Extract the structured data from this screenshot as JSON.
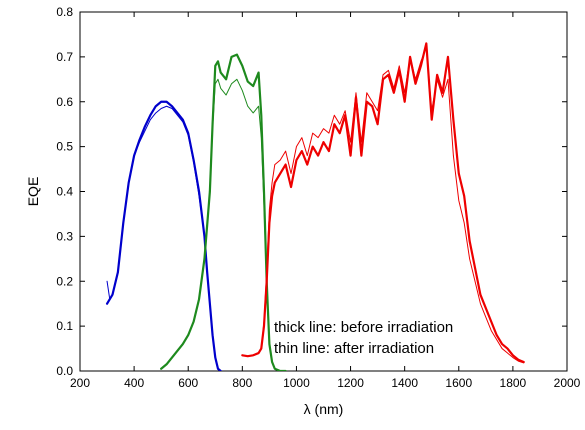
{
  "chart_data": {
    "type": "line",
    "title": "",
    "xlabel": "λ (nm)",
    "ylabel": "EQE",
    "xlim": [
      200,
      2000
    ],
    "ylim": [
      0.0,
      0.8
    ],
    "x_ticks": [
      "200",
      "400",
      "600",
      "800",
      "1000",
      "1200",
      "1400",
      "1600",
      "1800",
      "2000"
    ],
    "y_ticks": [
      "0.0",
      "0.1",
      "0.2",
      "0.3",
      "0.4",
      "0.5",
      "0.6",
      "0.7",
      "0.8"
    ],
    "grid": false,
    "legend": "none",
    "annotations": [
      "thick line: before irradiation",
      "thin line: after irradiation"
    ],
    "series": [
      {
        "color": "#0000cc",
        "width": 2.2,
        "x": [
          300,
          320,
          340,
          360,
          380,
          400,
          420,
          440,
          460,
          480,
          500,
          520,
          540,
          560,
          580,
          600,
          620,
          640,
          660,
          670,
          680,
          690,
          700,
          710,
          720
        ],
        "y": [
          0.15,
          0.17,
          0.22,
          0.33,
          0.42,
          0.48,
          0.515,
          0.545,
          0.57,
          0.59,
          0.6,
          0.6,
          0.59,
          0.575,
          0.56,
          0.53,
          0.47,
          0.4,
          0.3,
          0.22,
          0.15,
          0.08,
          0.03,
          0.005,
          0.0
        ]
      },
      {
        "color": "#0000cc",
        "width": 1.0,
        "x": [
          300,
          310,
          320,
          340,
          360,
          380,
          400,
          420,
          440,
          460,
          480,
          500,
          520,
          540,
          560,
          580,
          600,
          620,
          640,
          660,
          670,
          680,
          690,
          700,
          710,
          720
        ],
        "y": [
          0.2,
          0.16,
          0.17,
          0.22,
          0.33,
          0.42,
          0.48,
          0.51,
          0.535,
          0.56,
          0.575,
          0.585,
          0.59,
          0.585,
          0.57,
          0.555,
          0.525,
          0.465,
          0.39,
          0.3,
          0.22,
          0.15,
          0.08,
          0.03,
          0.005,
          0.0
        ]
      },
      {
        "color": "#1e8a1e",
        "width": 2.2,
        "x": [
          500,
          520,
          540,
          560,
          580,
          600,
          620,
          640,
          660,
          680,
          690,
          700,
          710,
          720,
          740,
          760,
          780,
          800,
          820,
          840,
          860,
          870,
          880,
          890,
          900,
          910,
          920,
          940,
          960
        ],
        "y": [
          0.005,
          0.015,
          0.03,
          0.045,
          0.06,
          0.08,
          0.11,
          0.16,
          0.25,
          0.4,
          0.55,
          0.68,
          0.69,
          0.665,
          0.65,
          0.7,
          0.705,
          0.68,
          0.645,
          0.635,
          0.665,
          0.57,
          0.4,
          0.2,
          0.06,
          0.02,
          0.005,
          0.0,
          0.0
        ]
      },
      {
        "color": "#1e8a1e",
        "width": 1.0,
        "x": [
          500,
          520,
          540,
          560,
          580,
          600,
          620,
          640,
          660,
          680,
          690,
          700,
          710,
          720,
          740,
          760,
          780,
          800,
          820,
          840,
          860,
          870,
          880,
          890,
          900,
          910,
          920,
          940,
          960
        ],
        "y": [
          0.005,
          0.015,
          0.03,
          0.045,
          0.06,
          0.08,
          0.11,
          0.16,
          0.25,
          0.4,
          0.54,
          0.64,
          0.65,
          0.63,
          0.615,
          0.64,
          0.65,
          0.625,
          0.59,
          0.575,
          0.59,
          0.52,
          0.37,
          0.19,
          0.06,
          0.02,
          0.005,
          0.0,
          0.0
        ]
      },
      {
        "color": "#ee0000",
        "width": 2.2,
        "x": [
          800,
          820,
          840,
          860,
          870,
          880,
          890,
          900,
          910,
          920,
          940,
          960,
          980,
          1000,
          1020,
          1040,
          1060,
          1080,
          1100,
          1120,
          1140,
          1160,
          1180,
          1200,
          1220,
          1240,
          1260,
          1280,
          1300,
          1320,
          1340,
          1360,
          1380,
          1400,
          1420,
          1440,
          1460,
          1480,
          1500,
          1520,
          1540,
          1560,
          1580,
          1600,
          1620,
          1640,
          1660,
          1680,
          1700,
          1720,
          1740,
          1760,
          1780,
          1800,
          1820,
          1840
        ],
        "y": [
          0.035,
          0.033,
          0.035,
          0.04,
          0.05,
          0.1,
          0.2,
          0.33,
          0.39,
          0.42,
          0.44,
          0.46,
          0.41,
          0.47,
          0.49,
          0.46,
          0.5,
          0.48,
          0.51,
          0.49,
          0.55,
          0.53,
          0.57,
          0.48,
          0.61,
          0.48,
          0.6,
          0.59,
          0.55,
          0.65,
          0.66,
          0.62,
          0.67,
          0.6,
          0.7,
          0.64,
          0.68,
          0.73,
          0.56,
          0.66,
          0.62,
          0.7,
          0.56,
          0.44,
          0.39,
          0.29,
          0.23,
          0.17,
          0.14,
          0.11,
          0.08,
          0.06,
          0.05,
          0.035,
          0.025,
          0.02
        ]
      },
      {
        "color": "#ee0000",
        "width": 1.0,
        "x": [
          800,
          820,
          840,
          860,
          870,
          880,
          890,
          900,
          910,
          920,
          940,
          960,
          980,
          1000,
          1020,
          1040,
          1060,
          1080,
          1100,
          1120,
          1140,
          1160,
          1180,
          1200,
          1220,
          1240,
          1260,
          1280,
          1300,
          1320,
          1340,
          1360,
          1380,
          1400,
          1420,
          1440,
          1460,
          1480,
          1500,
          1520,
          1540,
          1560,
          1580,
          1600,
          1620,
          1640,
          1660,
          1680,
          1700,
          1720,
          1740,
          1760,
          1780,
          1800,
          1820,
          1840
        ],
        "y": [
          0.035,
          0.033,
          0.035,
          0.04,
          0.05,
          0.11,
          0.22,
          0.36,
          0.42,
          0.46,
          0.47,
          0.49,
          0.44,
          0.5,
          0.52,
          0.48,
          0.53,
          0.52,
          0.54,
          0.53,
          0.57,
          0.55,
          0.58,
          0.51,
          0.62,
          0.51,
          0.62,
          0.6,
          0.58,
          0.66,
          0.67,
          0.63,
          0.68,
          0.62,
          0.7,
          0.65,
          0.69,
          0.72,
          0.58,
          0.65,
          0.61,
          0.65,
          0.48,
          0.38,
          0.33,
          0.25,
          0.2,
          0.15,
          0.12,
          0.09,
          0.07,
          0.05,
          0.04,
          0.03,
          0.022,
          0.018
        ]
      }
    ]
  }
}
